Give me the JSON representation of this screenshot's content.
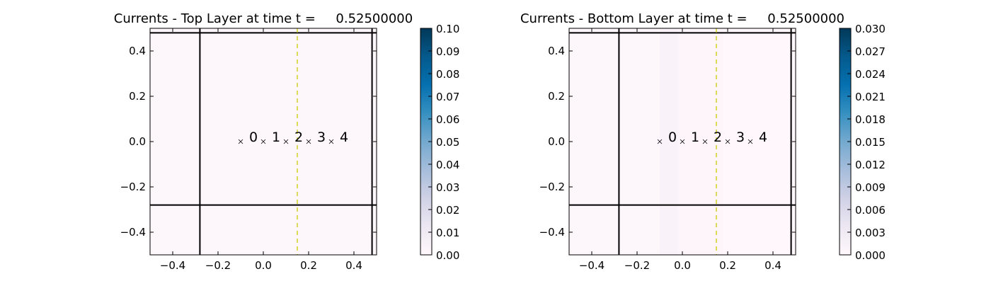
{
  "chart_data": [
    {
      "type": "heatmap",
      "title": "Currents - Top Layer at time t =     0.52500000",
      "xlim": [
        -0.5,
        0.5
      ],
      "ylim": [
        -0.5,
        0.5
      ],
      "x_ticks": [
        "−0.4",
        "−0.2",
        "0.0",
        "0.2",
        "0.4"
      ],
      "y_ticks": [
        "−0.4",
        "−0.2",
        "0.0",
        "0.2",
        "0.4"
      ],
      "x_tick_values": [
        -0.4,
        -0.2,
        0.0,
        0.2,
        0.4
      ],
      "y_tick_values": [
        -0.4,
        -0.2,
        0.0,
        0.2,
        0.4
      ],
      "colormap": "PuBu",
      "colorbar": {
        "range": [
          0,
          0.1
        ],
        "ticks": [
          "0.00",
          "0.01",
          "0.02",
          "0.03",
          "0.04",
          "0.05",
          "0.06",
          "0.07",
          "0.08",
          "0.09",
          "0.10"
        ]
      },
      "cells": [
        {
          "x0": -0.5,
          "x1": 0.5,
          "value": 0.001
        }
      ],
      "solid_lines_x": [
        -0.28,
        0.48
      ],
      "solid_lines_y": [
        -0.28,
        0.48
      ],
      "dashed_line_x": 0.15,
      "dashed_color": "#cccc00",
      "markers": [
        {
          "x": -0.1,
          "y": 0,
          "label": "0"
        },
        {
          "x": 0.0,
          "y": 0,
          "label": "1"
        },
        {
          "x": 0.1,
          "y": 0,
          "label": "2"
        },
        {
          "x": 0.2,
          "y": 0,
          "label": "3"
        },
        {
          "x": 0.3,
          "y": 0,
          "label": "4"
        }
      ]
    },
    {
      "type": "heatmap",
      "title": "Currents - Bottom Layer at time t =     0.52500000",
      "xlim": [
        -0.5,
        0.5
      ],
      "ylim": [
        -0.5,
        0.5
      ],
      "x_ticks": [
        "−0.4",
        "−0.2",
        "0.0",
        "0.2",
        "0.4"
      ],
      "y_ticks": [
        "−0.4",
        "−0.2",
        "0.0",
        "0.2",
        "0.4"
      ],
      "x_tick_values": [
        -0.4,
        -0.2,
        0.0,
        0.2,
        0.4
      ],
      "y_tick_values": [
        -0.4,
        -0.2,
        0.0,
        0.2,
        0.4
      ],
      "colormap": "PuBu",
      "colorbar": {
        "range": [
          0,
          0.03
        ],
        "ticks": [
          "0.000",
          "0.003",
          "0.006",
          "0.009",
          "0.012",
          "0.015",
          "0.018",
          "0.021",
          "0.024",
          "0.027",
          "0.030"
        ]
      },
      "cells": [
        {
          "x0": -0.5,
          "x1": -0.1,
          "value": 0.0003
        },
        {
          "x0": -0.1,
          "x1": -0.02,
          "value": 0.0012
        },
        {
          "x0": -0.02,
          "x1": 0.18,
          "value": 0.0004
        },
        {
          "x0": 0.18,
          "x1": 0.5,
          "value": 0
        }
      ],
      "solid_lines_x": [
        -0.28,
        0.48
      ],
      "solid_lines_y": [
        -0.28,
        0.48
      ],
      "dashed_line_x": 0.15,
      "dashed_color": "#cccc00",
      "markers": [
        {
          "x": -0.1,
          "y": 0,
          "label": "0"
        },
        {
          "x": 0.0,
          "y": 0,
          "label": "1"
        },
        {
          "x": 0.1,
          "y": 0,
          "label": "2"
        },
        {
          "x": 0.2,
          "y": 0,
          "label": "3"
        },
        {
          "x": 0.3,
          "y": 0,
          "label": "4"
        }
      ]
    }
  ]
}
